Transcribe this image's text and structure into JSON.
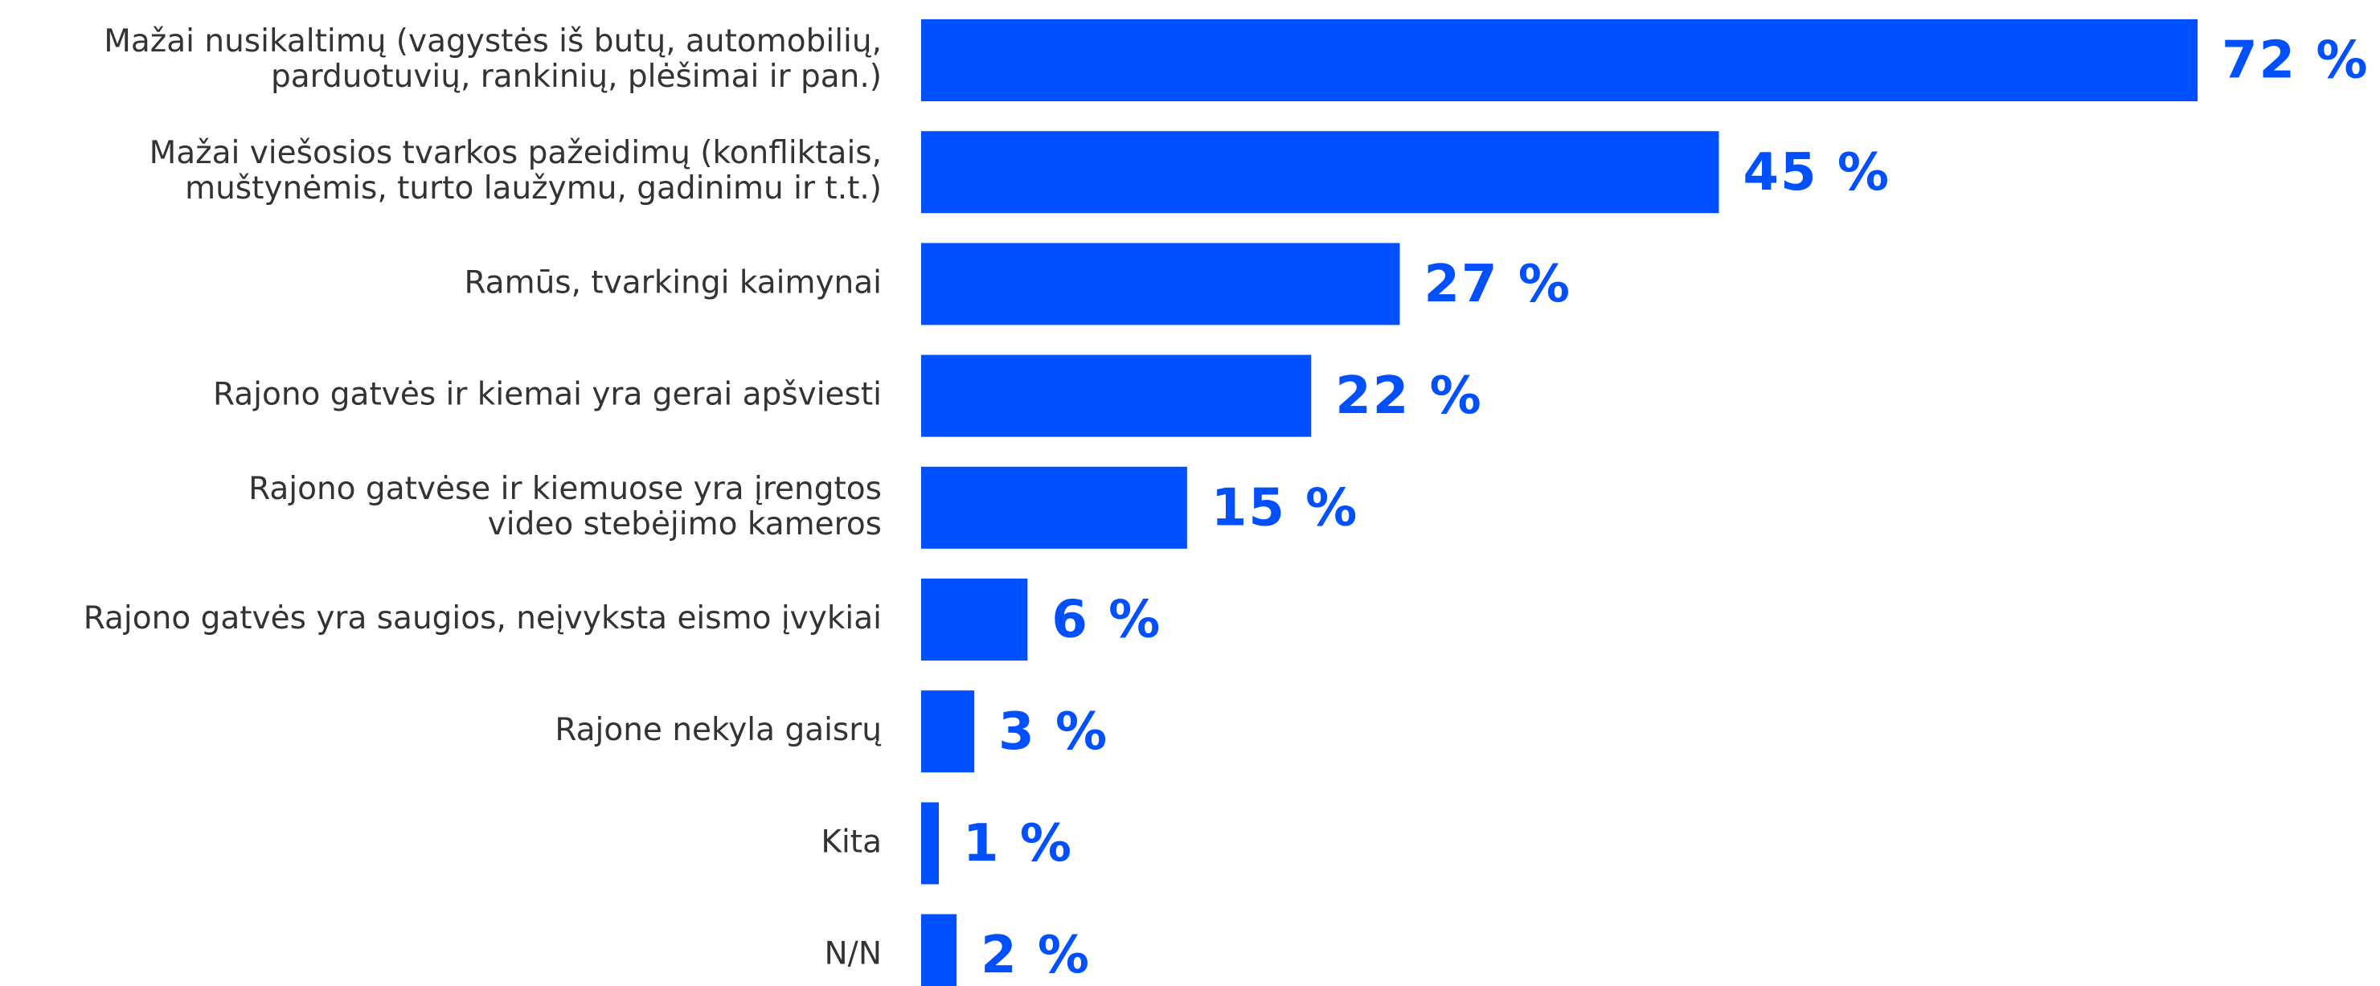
{
  "chart_data": {
    "type": "bar",
    "orientation": "horizontal",
    "color": "#0050ff",
    "categories": [
      "Mažai nusikaltimų (vagystės iš butų, automobilių,\nparduotuvių, rankinių, plėšimai ir pan.)",
      "Mažai viešosios tvarkos pažeidimų (konfliktais,\nmuštynėmis, turto laužymu, gadinimu ir t.t.)",
      "Ramūs, tvarkingi kaimynai",
      "Rajono gatvės  ir kiemai yra gerai apšviesti",
      "Rajono gatvėse ir kiemuose yra įrengtos\nvideo stebėjimo kameros",
      "Rajono gatvės yra saugios, neįvyksta eismo  įvykiai",
      "Rajone nekyla gaisrų",
      "Kita",
      "N/N"
    ],
    "values": [
      72,
      45,
      27,
      22,
      15,
      6,
      3,
      1,
      2
    ],
    "value_labels": [
      "72 %",
      "45 %",
      "27 %",
      "22 %",
      "15 %",
      "6 %",
      "3 %",
      "1 %",
      "2 %"
    ]
  }
}
